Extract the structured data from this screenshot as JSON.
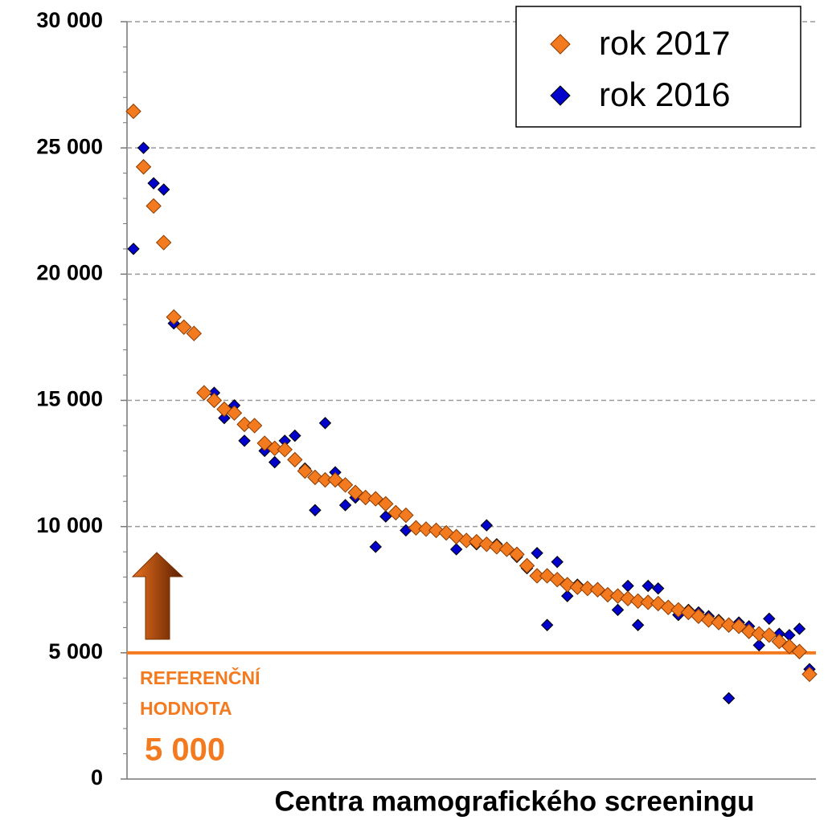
{
  "chart_data": {
    "type": "scatter",
    "xlabel": "Centra mamografického screeningu",
    "ylim": [
      0,
      30000
    ],
    "yticks": [
      {
        "value": 0,
        "label": "0"
      },
      {
        "value": 5000,
        "label": "5 000"
      },
      {
        "value": 10000,
        "label": "10 000"
      },
      {
        "value": 15000,
        "label": "15 000"
      },
      {
        "value": 20000,
        "label": "20 000"
      },
      {
        "value": 25000,
        "label": "25 000"
      },
      {
        "value": 30000,
        "label": "30 000"
      }
    ],
    "grid": true,
    "legend": "upper right",
    "reference": {
      "value": 5000,
      "label": [
        "REFERENČNÍ",
        "HODNOTA"
      ],
      "value_label": "5 000",
      "color": "#f47a1f"
    },
    "series": [
      {
        "name": "rok 2016",
        "color": "#0000cc",
        "values": [
          21000,
          25000,
          23600,
          23350,
          18050,
          17900,
          17700,
          15300,
          15300,
          14300,
          14800,
          13400,
          14000,
          13000,
          12550,
          13400,
          13600,
          12300,
          10650,
          14100,
          12150,
          10850,
          11150,
          11200,
          9200,
          10400,
          10550,
          9850,
          10000,
          9900,
          9900,
          9750,
          9100,
          9500,
          9300,
          10050,
          9300,
          9100,
          8800,
          8350,
          8950,
          6100,
          8600,
          7250,
          7700,
          7550,
          7550,
          7250,
          6700,
          7650,
          6100,
          7650,
          7550,
          6750,
          6500,
          6700,
          6600,
          6450,
          6300,
          3200,
          6200,
          6050,
          5300,
          6350,
          5750,
          5700,
          5950,
          4350
        ]
      },
      {
        "name": "rok 2017",
        "color": "#f47a1f",
        "values": [
          26450,
          24250,
          22700,
          21250,
          18300,
          17900,
          17650,
          15300,
          15000,
          14650,
          14500,
          14050,
          14000,
          13300,
          13100,
          13050,
          12650,
          12200,
          11950,
          11850,
          11850,
          11650,
          11350,
          11150,
          11100,
          10900,
          10550,
          10450,
          9950,
          9900,
          9850,
          9750,
          9600,
          9450,
          9400,
          9300,
          9200,
          9100,
          8900,
          8450,
          8050,
          8050,
          7900,
          7700,
          7600,
          7550,
          7500,
          7300,
          7250,
          7150,
          7050,
          7000,
          6950,
          6800,
          6700,
          6600,
          6450,
          6300,
          6200,
          6100,
          6050,
          5850,
          5750,
          5700,
          5450,
          5250,
          5050,
          4150
        ]
      }
    ]
  }
}
